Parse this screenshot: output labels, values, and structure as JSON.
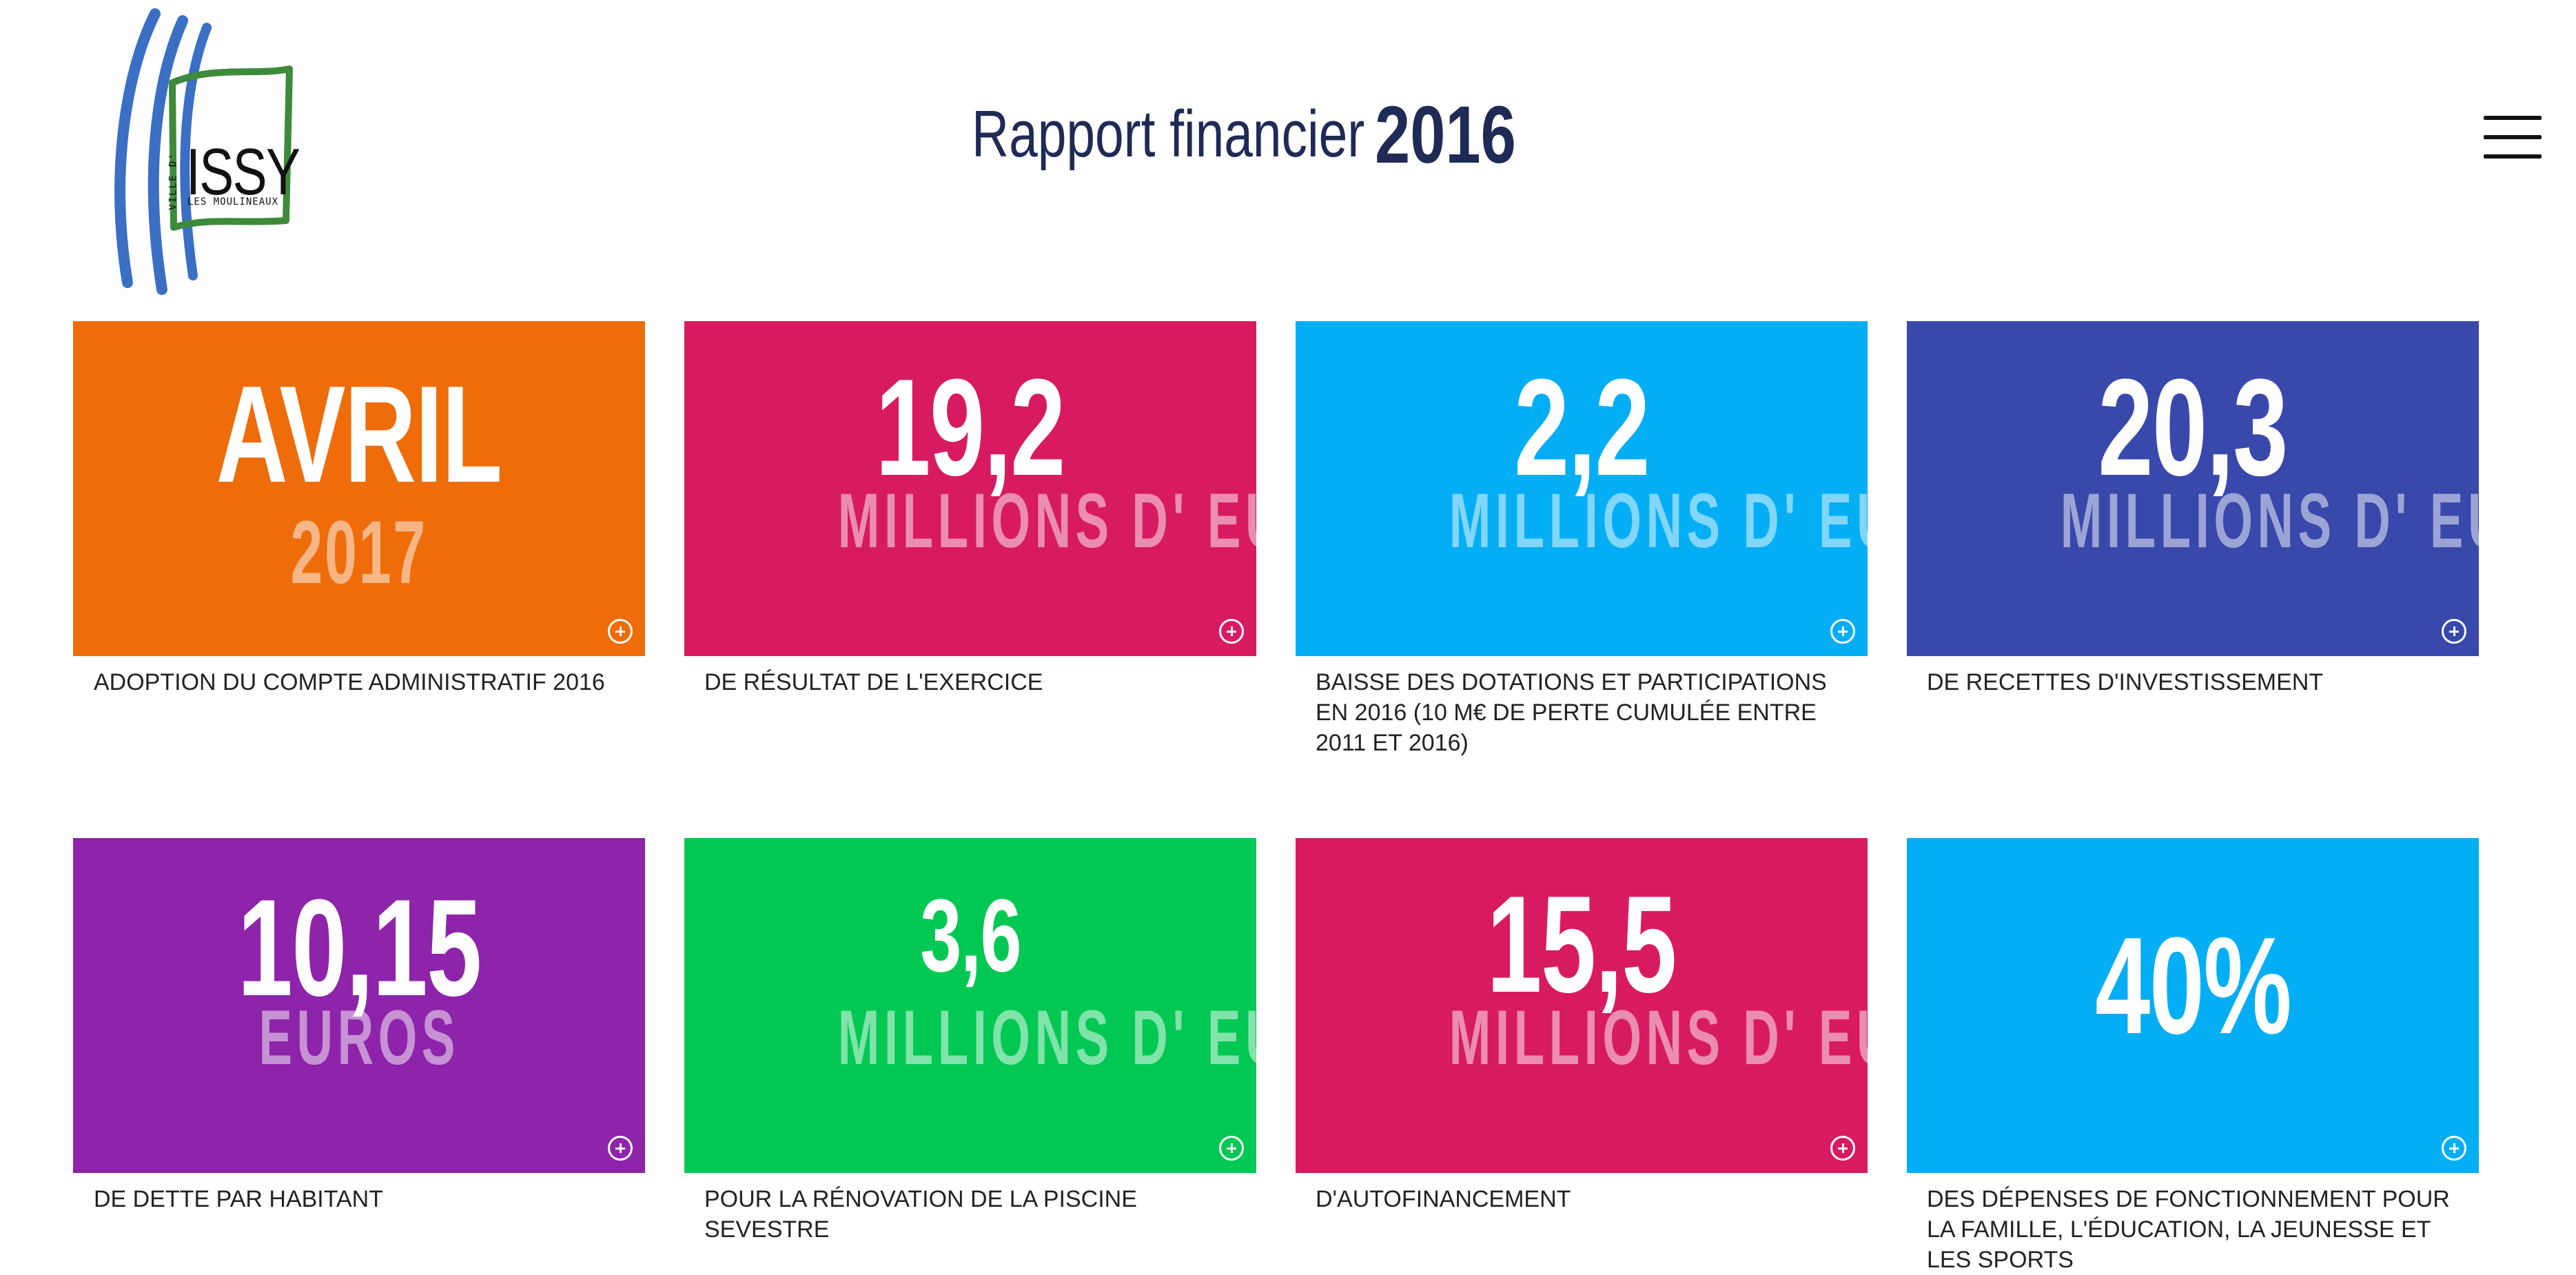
{
  "header": {
    "title_regular": "Rapport financier",
    "title_bold": "2016",
    "logo": {
      "top": "VILLE D'",
      "main": "ISSY",
      "bottom": "LES MOULINEAUX"
    }
  },
  "colors": {
    "orange": "#ef6c0a",
    "pink": "#d81b60",
    "cyan": "#03aef5",
    "indigo": "#3948ab",
    "purple": "#8e24aa",
    "green": "#00c853",
    "title": "#1f2a55"
  },
  "tiles": [
    {
      "value": "AVRIL",
      "unit": "2017",
      "caption": "ADOPTION DU COMPTE ADMINISTRATIF 2016"
    },
    {
      "value": "19,2",
      "unit": "MILLIONS D' EUROS",
      "caption": "DE RÉSULTAT DE L'EXERCICE"
    },
    {
      "value": "2,2",
      "unit": "MILLIONS D' EUROS",
      "caption": "BAISSE DES DOTATIONS ET PARTICIPATIONS EN 2016 (10 M€ DE PERTE CUMULÉE ENTRE 2011 ET 2016)"
    },
    {
      "value": "20,3",
      "unit": "MILLIONS D' EUROS",
      "caption": "DE RECETTES D'INVESTISSEMENT"
    },
    {
      "value": "10,15",
      "unit": "EUROS",
      "caption": "DE DETTE PAR HABITANT"
    },
    {
      "value": "3,6",
      "unit": "MILLIONS D' EUROS",
      "caption": "POUR LA RÉNOVATION DE LA PISCINE SEVESTRE"
    },
    {
      "value": "15,5",
      "unit": "MILLIONS D' EUROS",
      "caption": "D'AUTOFINANCEMENT"
    },
    {
      "value": "40%",
      "unit": "",
      "caption": "DES DÉPENSES DE FONCTIONNEMENT POUR LA FAMILLE, L'ÉDUCATION, LA JEUNESSE ET LES SPORTS"
    }
  ]
}
